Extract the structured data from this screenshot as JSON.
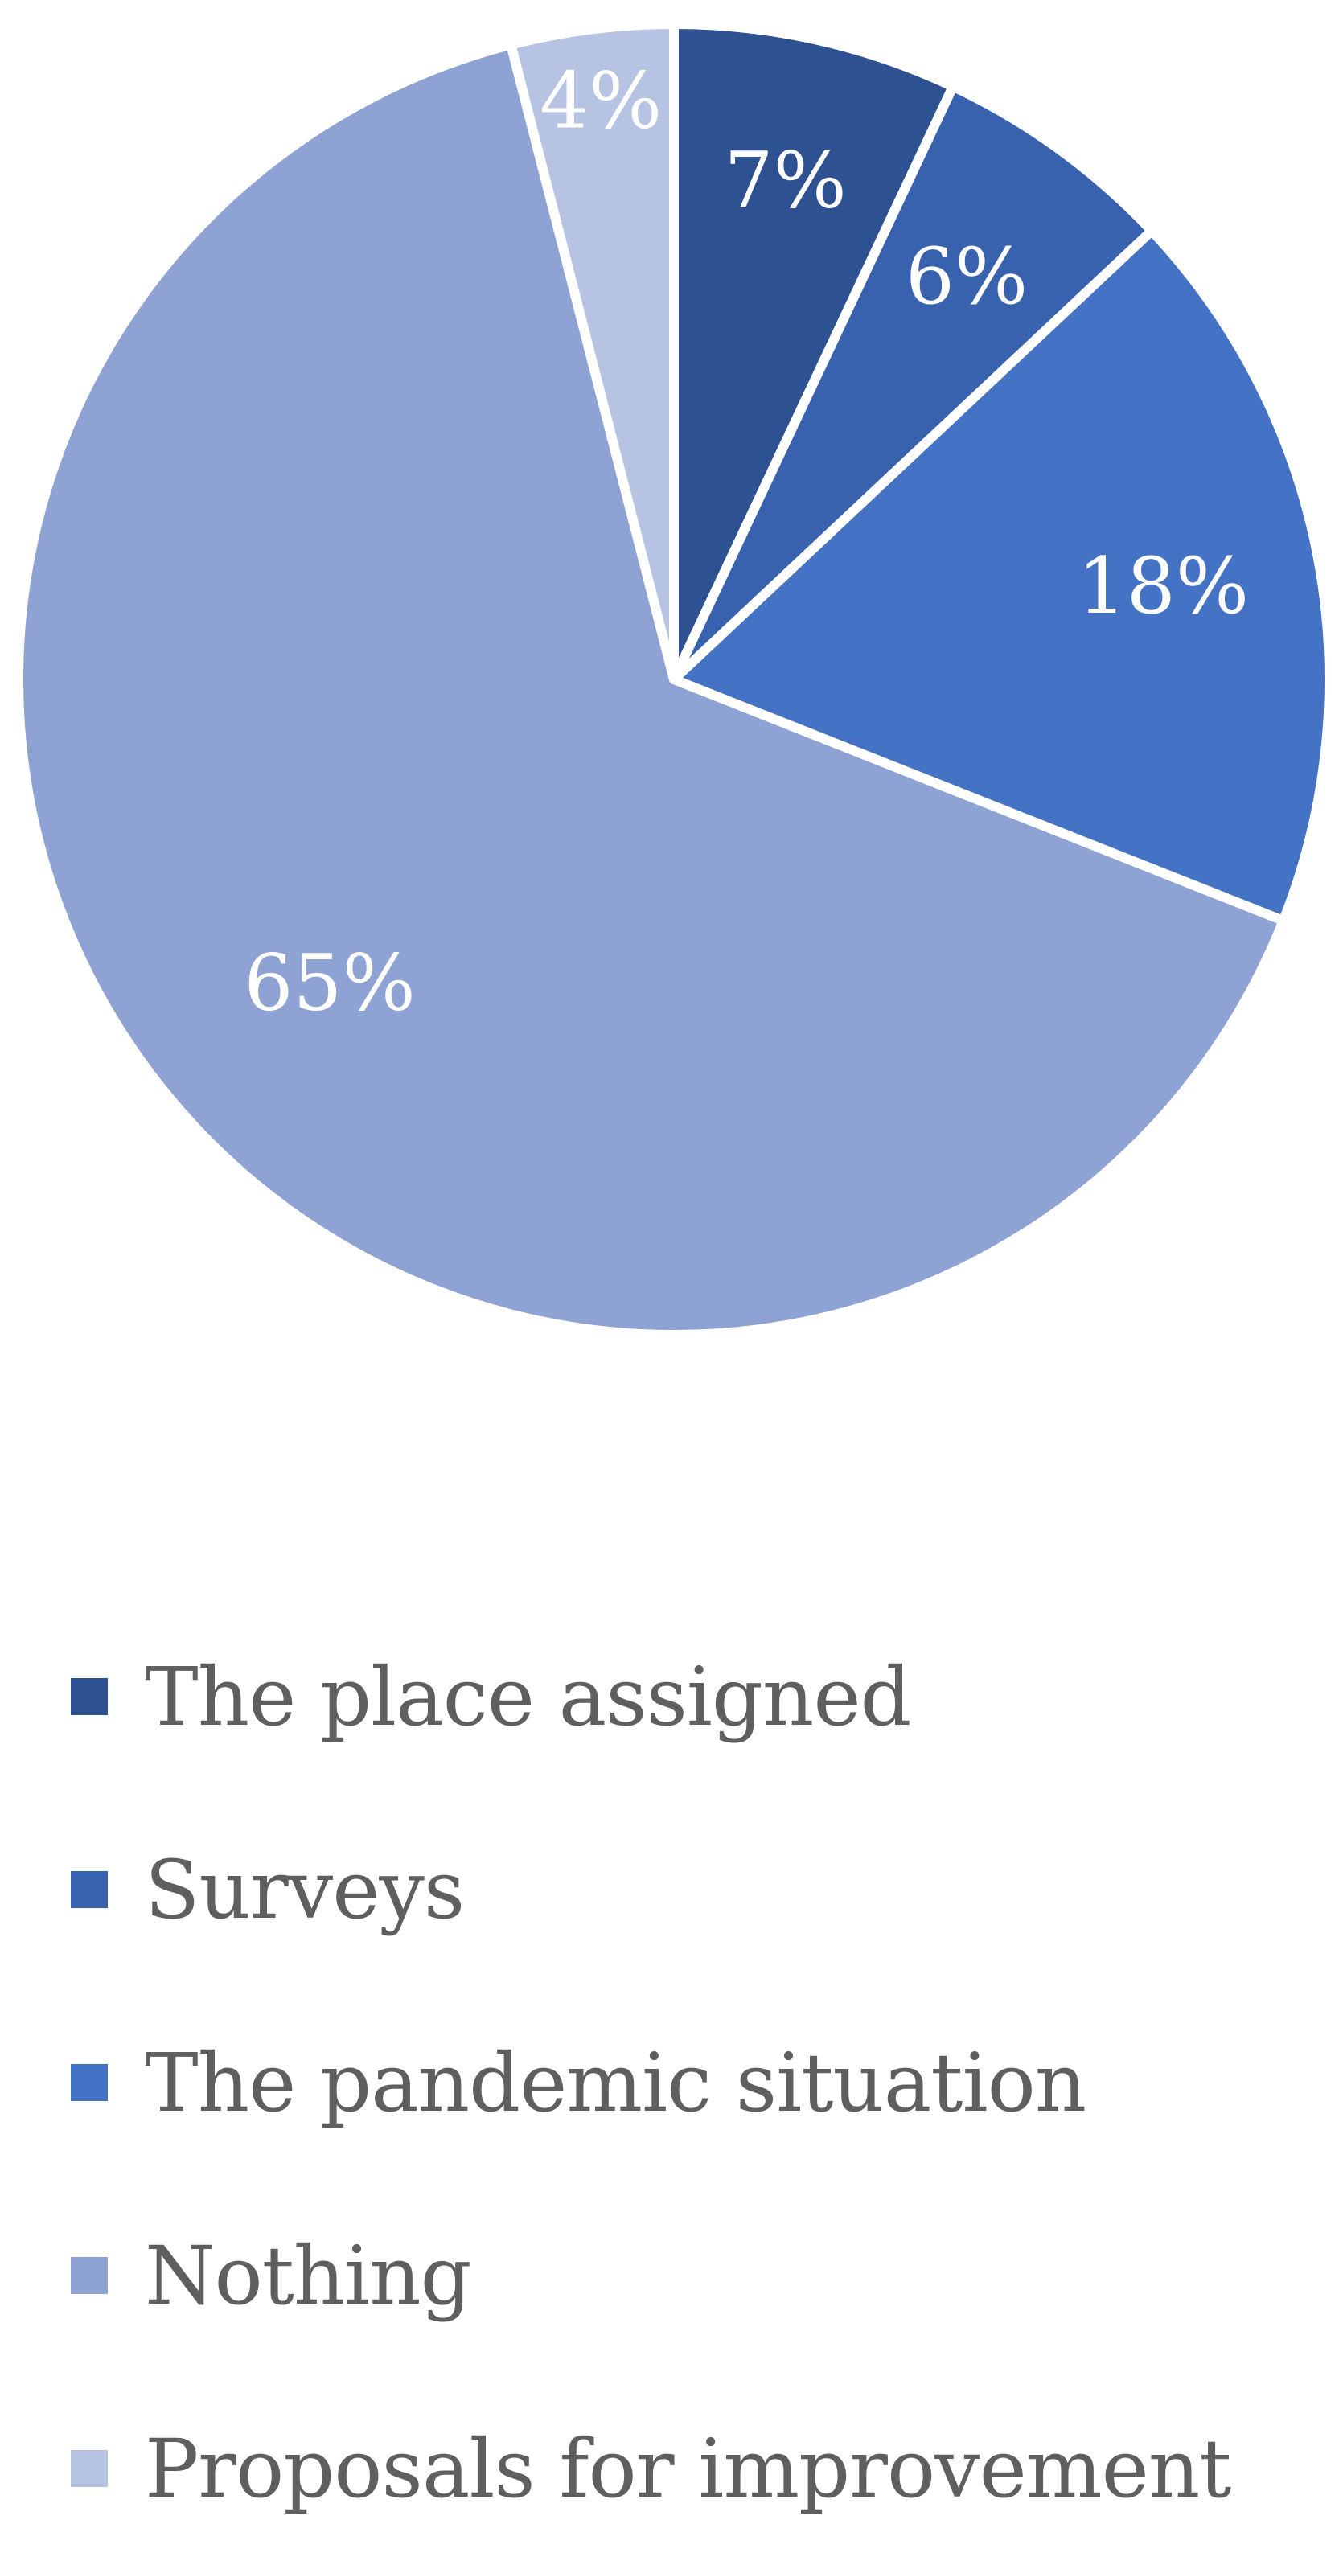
{
  "chart_data": {
    "type": "pie",
    "title": "",
    "categories": [
      "The place assigned",
      "Surveys",
      "The pandemic situation",
      "Nothing",
      "Proposals for improvement"
    ],
    "values": [
      7,
      6,
      18,
      65,
      4
    ],
    "value_labels": [
      "7%",
      "6%",
      "18%",
      "65%",
      "4%"
    ],
    "colors": [
      "#2e5191",
      "#3862ad",
      "#4472c4",
      "#8ea2d3",
      "#b7c3e3"
    ],
    "start_angle_deg": 0,
    "direction": "clockwise",
    "legend_position": "bottom"
  }
}
